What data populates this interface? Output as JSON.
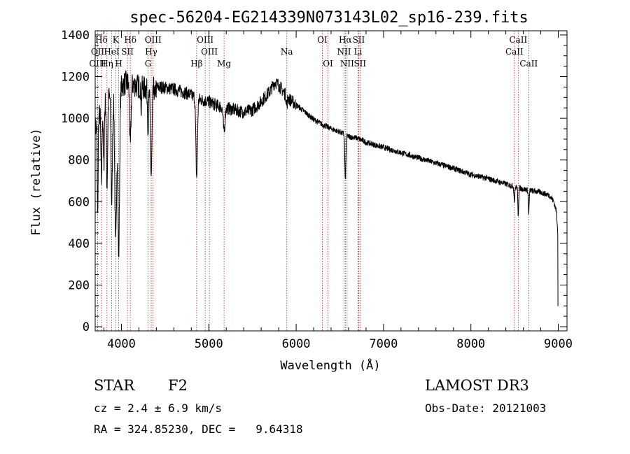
{
  "chart_data": {
    "type": "line",
    "title": "spec-56204-EG214339N073143L02_sp16-239.fits",
    "xlabel": "Wavelength (Å)",
    "ylabel": "Flux (relative)",
    "xlim": [
      3700,
      9100
    ],
    "ylim": [
      -20,
      1420
    ],
    "xticks": [
      4000,
      5000,
      6000,
      7000,
      8000,
      9000
    ],
    "xtick_labels": [
      "4000",
      "5000",
      "6000",
      "7000",
      "8000",
      "9000"
    ],
    "yticks": [
      0,
      200,
      400,
      600,
      800,
      1000,
      1200,
      1400
    ],
    "ytick_labels": [
      "0",
      "200",
      "400",
      "600",
      "800",
      "1000",
      "1200",
      "1400"
    ],
    "grid": false,
    "legend": "none",
    "spectral_lines": [
      {
        "label": "Hδ",
        "wave": 3771,
        "row": 1
      },
      {
        "label": "OII",
        "wave": 3728,
        "row": 2
      },
      {
        "label": "OIII",
        "wave": 3727,
        "row": 3
      },
      {
        "label": "K",
        "wave": 3934,
        "row": 1
      },
      {
        "label": "HeI",
        "wave": 3889,
        "row": 2
      },
      {
        "label": "Hη",
        "wave": 3835,
        "row": 3
      },
      {
        "label": "Hδ",
        "wave": 4102,
        "row": 1
      },
      {
        "label": "SII",
        "wave": 4069,
        "row": 2
      },
      {
        "label": "H",
        "wave": 3969,
        "row": 3
      },
      {
        "label": "OIII",
        "wave": 4363,
        "row": 1
      },
      {
        "label": "Hγ",
        "wave": 4341,
        "row": 2
      },
      {
        "label": "G",
        "wave": 4305,
        "row": 3
      },
      {
        "label": "OIII",
        "wave": 4959,
        "row": 1
      },
      {
        "label": "OIII",
        "wave": 5007,
        "row": 2
      },
      {
        "label": "Hβ",
        "wave": 4861,
        "row": 3
      },
      {
        "label": "Mg",
        "wave": 5175,
        "row": 3
      },
      {
        "label": "Na",
        "wave": 5893,
        "row": 2
      },
      {
        "label": "OI",
        "wave": 6300,
        "row": 1
      },
      {
        "label": "OI",
        "wave": 6364,
        "row": 3
      },
      {
        "label": "Hα",
        "wave": 6563,
        "row": 1
      },
      {
        "label": "NII",
        "wave": 6548,
        "row": 2
      },
      {
        "label": "NII",
        "wave": 6583,
        "row": 3
      },
      {
        "label": "SII",
        "wave": 6716,
        "row": 1
      },
      {
        "label": "Li",
        "wave": 6708,
        "row": 2
      },
      {
        "label": "SII",
        "wave": 6731,
        "row": 3
      },
      {
        "label": "CaII",
        "wave": 8542,
        "row": 1
      },
      {
        "label": "CaII",
        "wave": 8498,
        "row": 2
      },
      {
        "label": "CaII",
        "wave": 8662,
        "row": 3
      }
    ],
    "continuum_knots": [
      [
        3700,
        950
      ],
      [
        3760,
        1030
      ],
      [
        3820,
        1090
      ],
      [
        3900,
        1120
      ],
      [
        3980,
        1150
      ],
      [
        4050,
        1170
      ],
      [
        4150,
        1160
      ],
      [
        4300,
        1140
      ],
      [
        4450,
        1150
      ],
      [
        4600,
        1140
      ],
      [
        4750,
        1120
      ],
      [
        4900,
        1090
      ],
      [
        5000,
        1080
      ],
      [
        5100,
        1060
      ],
      [
        5200,
        1050
      ],
      [
        5300,
        1040
      ],
      [
        5400,
        1030
      ],
      [
        5500,
        1040
      ],
      [
        5600,
        1080
      ],
      [
        5700,
        1130
      ],
      [
        5760,
        1175
      ],
      [
        5800,
        1160
      ],
      [
        5900,
        1100
      ],
      [
        6000,
        1065
      ],
      [
        6100,
        1030
      ],
      [
        6200,
        995
      ],
      [
        6300,
        970
      ],
      [
        6400,
        950
      ],
      [
        6500,
        935
      ],
      [
        6600,
        912
      ],
      [
        6700,
        905
      ],
      [
        6800,
        885
      ],
      [
        7000,
        860
      ],
      [
        7200,
        835
      ],
      [
        7400,
        810
      ],
      [
        7600,
        785
      ],
      [
        7800,
        760
      ],
      [
        8000,
        730
      ],
      [
        8200,
        710
      ],
      [
        8400,
        685
      ],
      [
        8600,
        660
      ],
      [
        8800,
        645
      ],
      [
        8900,
        630
      ],
      [
        8950,
        600
      ],
      [
        8980,
        550
      ],
      [
        9000,
        420
      ]
    ],
    "absorption_features": [
      [
        3728,
        480,
        5
      ],
      [
        3771,
        350,
        6
      ],
      [
        3798,
        300,
        6
      ],
      [
        3835,
        420,
        7
      ],
      [
        3889,
        520,
        8
      ],
      [
        3934,
        750,
        10
      ],
      [
        3969,
        800,
        10
      ],
      [
        4102,
        300,
        8
      ],
      [
        4227,
        100,
        4
      ],
      [
        4305,
        180,
        6
      ],
      [
        4341,
        420,
        9
      ],
      [
        4383,
        60,
        4
      ],
      [
        4861,
        380,
        9
      ],
      [
        5175,
        120,
        10
      ],
      [
        5893,
        40,
        6
      ],
      [
        6563,
        220,
        6
      ],
      [
        8498,
        70,
        5
      ],
      [
        8542,
        130,
        5
      ],
      [
        8662,
        110,
        5
      ]
    ],
    "noise_amplitude": "±25"
  },
  "info": {
    "object_class": "STAR",
    "subclass": "F2",
    "survey": "LAMOST DR3",
    "cz": "cz = 2.4 ± 6.9 km/s",
    "obs_date": "Obs-Date: 20121003",
    "radec": "RA = 324.85230, DEC =   9.64318"
  }
}
